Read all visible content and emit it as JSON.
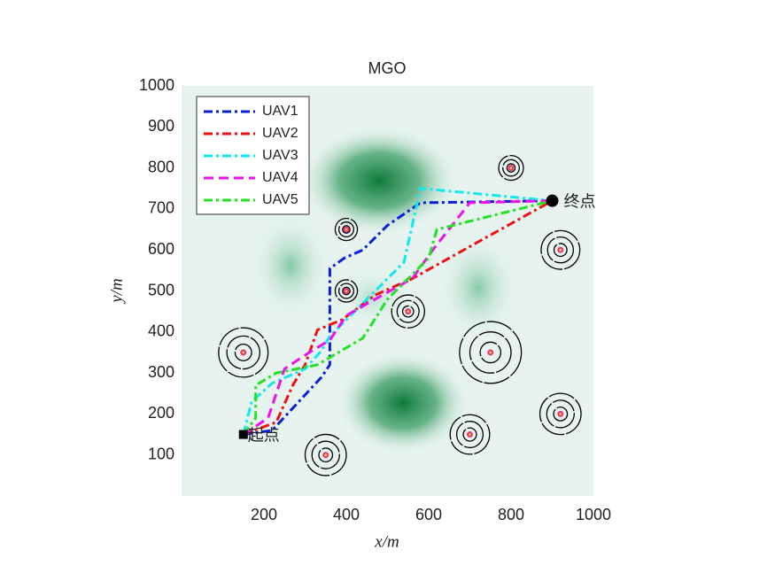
{
  "chart_data": {
    "type": "line",
    "title": "MGO",
    "x_label": "x/m",
    "y_label": "y/m",
    "xlim": [
      0,
      1000
    ],
    "ylim": [
      0,
      1000
    ],
    "xticks": [
      200,
      400,
      600,
      800,
      1000
    ],
    "yticks": [
      100,
      200,
      300,
      400,
      500,
      600,
      700,
      800,
      900,
      1000
    ],
    "grid": false,
    "legend": "upper left",
    "series": [
      {
        "name": "UAV1",
        "color": "#0a1fd8",
        "dash": "dashdot",
        "x": [
          150,
          220,
          340,
          360,
          360,
          395,
          440,
          500,
          580,
          900
        ],
        "values": [
          150,
          160,
          290,
          320,
          555,
          580,
          600,
          660,
          715,
          720
        ]
      },
      {
        "name": "UAV2",
        "color": "#ee1111",
        "dash": "dashdot",
        "x": [
          150,
          230,
          270,
          300,
          330,
          390,
          430,
          470,
          560,
          900
        ],
        "values": [
          150,
          180,
          270,
          320,
          405,
          430,
          460,
          490,
          530,
          720
        ]
      },
      {
        "name": "UAV3",
        "color": "#11e8f0",
        "dash": "dashdot",
        "x": [
          150,
          170,
          220,
          300,
          340,
          360,
          430,
          490,
          540,
          580,
          900
        ],
        "values": [
          150,
          230,
          275,
          310,
          355,
          390,
          460,
          520,
          570,
          750,
          720
        ]
      },
      {
        "name": "UAV4",
        "color": "#ee11ee",
        "dash": "dashed",
        "x": [
          150,
          210,
          250,
          310,
          360,
          400,
          470,
          560,
          610,
          700,
          900
        ],
        "values": [
          150,
          190,
          310,
          350,
          380,
          440,
          480,
          530,
          600,
          715,
          720
        ]
      },
      {
        "name": "UAV5",
        "color": "#22e222",
        "dash": "dashdot",
        "x": [
          150,
          180,
          180,
          230,
          330,
          440,
          500,
          600,
          620,
          900
        ],
        "values": [
          150,
          190,
          270,
          300,
          320,
          385,
          480,
          580,
          650,
          720
        ]
      }
    ],
    "threats": [
      {
        "x": 150,
        "y": 350,
        "r": 60
      },
      {
        "x": 350,
        "y": 100,
        "r": 50
      },
      {
        "x": 400,
        "y": 650,
        "r": 27
      },
      {
        "x": 400,
        "y": 500,
        "r": 27
      },
      {
        "x": 550,
        "y": 450,
        "r": 40
      },
      {
        "x": 750,
        "y": 350,
        "r": 75
      },
      {
        "x": 700,
        "y": 150,
        "r": 48
      },
      {
        "x": 800,
        "y": 800,
        "r": 30
      },
      {
        "x": 920,
        "y": 600,
        "r": 47
      },
      {
        "x": 920,
        "y": 200,
        "r": 50
      }
    ],
    "start": {
      "x": 150,
      "y": 150,
      "label": "起点"
    },
    "end": {
      "x": 900,
      "y": 720,
      "label": "终点"
    }
  }
}
